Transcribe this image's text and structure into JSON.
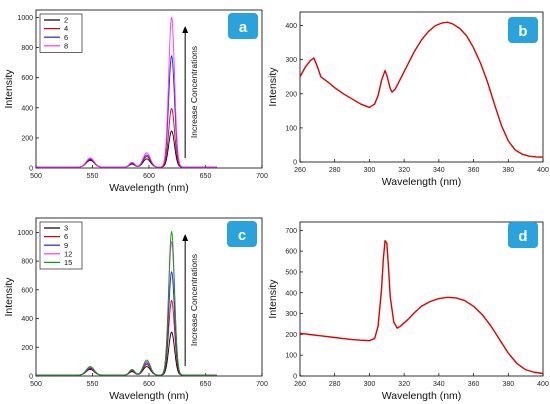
{
  "panels": {
    "a": "a",
    "b": "b",
    "c": "c",
    "d": "d"
  },
  "colors": {
    "badge": "#2aa3dc",
    "curve_red": "#e00000",
    "black": "#000000"
  },
  "chart_data": [
    {
      "panel": "a",
      "type": "line",
      "xlabel": "Wavelength (nm)",
      "ylabel": "Intensity",
      "xlim": [
        500,
        700
      ],
      "ylim": [
        0,
        1050
      ],
      "xticks": [
        500,
        550,
        600,
        650,
        700
      ],
      "yticks": [
        0,
        200,
        400,
        600,
        800,
        1000
      ],
      "annotation": "Increase Concentrations",
      "legend_position": "top-left",
      "peaks": [
        548,
        585,
        598,
        620
      ],
      "series": [
        {
          "name": "2",
          "color": "#000000",
          "peak_heights": [
            45,
            20,
            55,
            240
          ]
        },
        {
          "name": "4",
          "color": "#e00000",
          "peak_heights": [
            50,
            25,
            70,
            390
          ]
        },
        {
          "name": "6",
          "color": "#1f1fff",
          "peak_heights": [
            55,
            28,
            80,
            740
          ]
        },
        {
          "name": "8",
          "color": "#ff33ff",
          "peak_heights": [
            60,
            32,
            95,
            995
          ]
        }
      ]
    },
    {
      "panel": "b",
      "type": "line",
      "xlabel": "Wavelength (nm)",
      "ylabel": "Intensity",
      "xlim": [
        260,
        400
      ],
      "ylim": [
        0,
        440
      ],
      "xticks": [
        260,
        280,
        300,
        320,
        340,
        360,
        380,
        400
      ],
      "yticks": [
        0,
        100,
        200,
        300,
        400
      ],
      "series": [
        {
          "color": "#e00000",
          "x": [
            260,
            263,
            266,
            268,
            270,
            272,
            276,
            280,
            285,
            290,
            295,
            300,
            303,
            305,
            307,
            309,
            310,
            312,
            313,
            315,
            318,
            322,
            326,
            330,
            334,
            338,
            342,
            345,
            348,
            352,
            356,
            360,
            364,
            368,
            372,
            376,
            380,
            384,
            388,
            392,
            396,
            400
          ],
          "y": [
            250,
            278,
            298,
            305,
            280,
            250,
            235,
            218,
            200,
            185,
            170,
            160,
            170,
            195,
            240,
            268,
            255,
            215,
            205,
            215,
            245,
            285,
            325,
            358,
            383,
            400,
            408,
            410,
            405,
            392,
            370,
            335,
            290,
            235,
            170,
            108,
            62,
            35,
            23,
            17,
            15,
            14
          ]
        }
      ]
    },
    {
      "panel": "c",
      "type": "line",
      "xlabel": "Wavelength (nm)",
      "ylabel": "Intensity",
      "xlim": [
        500,
        700
      ],
      "ylim": [
        0,
        1100
      ],
      "xticks": [
        500,
        550,
        600,
        650,
        700
      ],
      "yticks": [
        0,
        200,
        400,
        600,
        800,
        1000
      ],
      "annotation": "Increase Concentrations",
      "legend_position": "top-left",
      "peaks": [
        548,
        585,
        598,
        620
      ],
      "series": [
        {
          "name": "3",
          "color": "#000000",
          "peak_heights": [
            40,
            25,
            60,
            300
          ]
        },
        {
          "name": "6",
          "color": "#e00000",
          "peak_heights": [
            45,
            30,
            75,
            520
          ]
        },
        {
          "name": "9",
          "color": "#1f1fff",
          "peak_heights": [
            50,
            35,
            85,
            720
          ]
        },
        {
          "name": "12",
          "color": "#ff33ff",
          "peak_heights": [
            55,
            38,
            95,
            930
          ]
        },
        {
          "name": "15",
          "color": "#00a000",
          "peak_heights": [
            60,
            40,
            105,
            1000
          ]
        }
      ]
    },
    {
      "panel": "d",
      "type": "line",
      "xlabel": "Wavelength (nm)",
      "ylabel": "Intensity",
      "xlim": [
        260,
        400
      ],
      "ylim": [
        0,
        740
      ],
      "xticks": [
        260,
        280,
        300,
        320,
        340,
        360,
        380,
        400
      ],
      "yticks": [
        0,
        100,
        200,
        300,
        400,
        500,
        600,
        700
      ],
      "series": [
        {
          "color": "#e00000",
          "x": [
            260,
            265,
            270,
            275,
            280,
            285,
            290,
            295,
            300,
            303,
            305,
            307,
            308,
            309,
            310,
            311,
            312,
            314,
            316,
            318,
            322,
            326,
            330,
            335,
            340,
            345,
            350,
            355,
            360,
            365,
            370,
            375,
            380,
            385,
            390,
            395,
            400
          ],
          "y": [
            205,
            200,
            195,
            190,
            185,
            180,
            175,
            172,
            170,
            180,
            240,
            420,
            560,
            650,
            640,
            520,
            380,
            260,
            230,
            240,
            270,
            305,
            335,
            358,
            372,
            378,
            375,
            362,
            335,
            295,
            240,
            175,
            110,
            60,
            30,
            18,
            12
          ]
        }
      ]
    }
  ]
}
